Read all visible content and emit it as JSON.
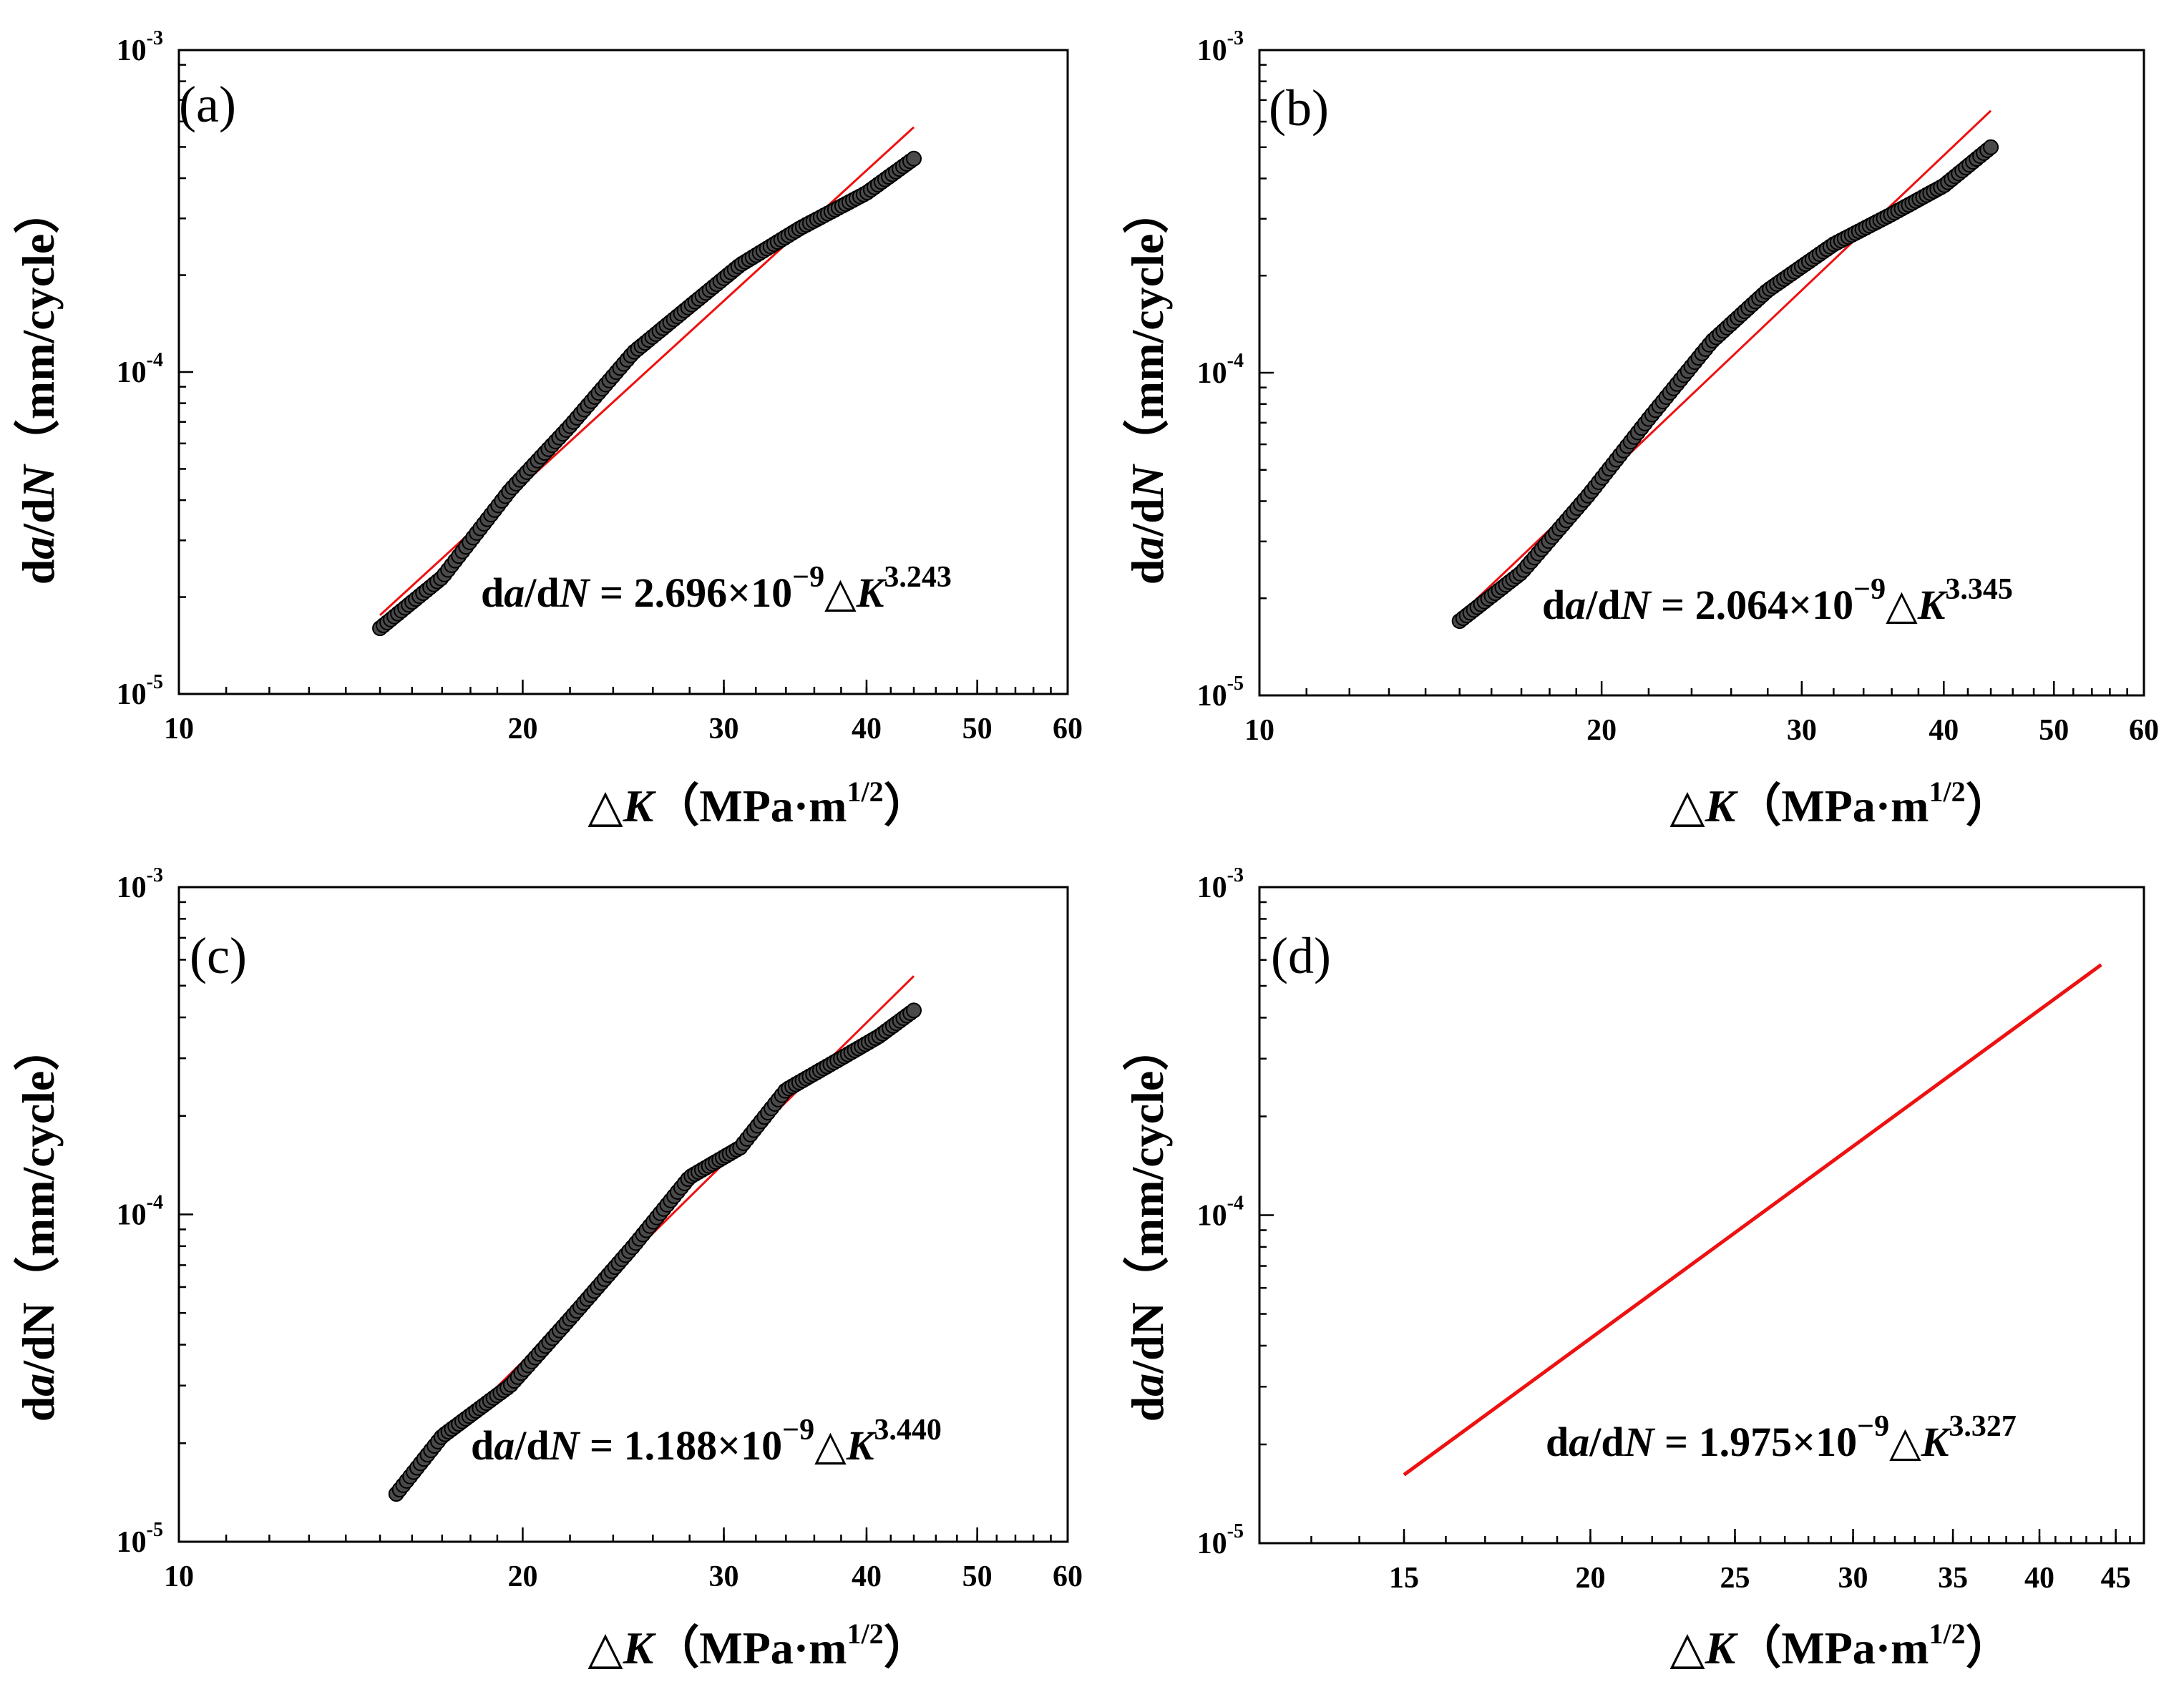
{
  "colors": {
    "fit_line": "#ee1111",
    "points": "#4a4a4a",
    "axis": "#000000"
  },
  "chart_data": [
    {
      "type": "scatter",
      "panel": "(a)",
      "xscale": "log",
      "yscale": "log",
      "xlim": [
        10,
        60
      ],
      "ylim": [
        1e-05,
        0.001
      ],
      "xticks": [
        "10",
        "20",
        "30",
        "40",
        "50",
        "60"
      ],
      "yticks": [
        {
          "base": "10",
          "exp": "-5"
        },
        {
          "base": "10",
          "exp": "-4"
        },
        {
          "base": "10",
          "exp": "-3"
        }
      ],
      "xlabel": {
        "symbol": "△",
        "var": "K",
        "unit": "（MPa·m",
        "sup": "1/2",
        "close": "）"
      },
      "ylabel": {
        "p1": "d",
        "p2": "a",
        "p3": "/d",
        "p4": "N",
        "p5": "（mm/cycle）"
      },
      "equation": {
        "p1": "d",
        "p2": "a",
        "p3": "/d",
        "p4": "N",
        "p5": " = 2.696×10",
        "exp1": "−9",
        "p6": "△",
        "p7": "K",
        "exp2": "3.243"
      },
      "fit": {
        "C": 2.696e-09,
        "m": 3.243,
        "x_range": [
          15,
          44
        ]
      },
      "series": [
        {
          "name": "data",
          "x_range": [
            15,
            44
          ],
          "n": 150,
          "anchors": [
            [
              15,
              1.6e-05
            ],
            [
              17,
              2.3e-05
            ],
            [
              19.5,
              4.3e-05
            ],
            [
              22,
              6.8e-05
            ],
            [
              25,
              0.000115
            ],
            [
              28,
              0.00016
            ],
            [
              31,
              0.000215
            ],
            [
              35,
              0.00028
            ],
            [
              40,
              0.00036
            ],
            [
              44,
              0.00046
            ]
          ]
        }
      ]
    },
    {
      "type": "scatter",
      "panel": "(b)",
      "xscale": "log",
      "yscale": "log",
      "xlim": [
        10,
        60
      ],
      "ylim": [
        1e-05,
        0.001
      ],
      "xticks": [
        "10",
        "20",
        "30",
        "40",
        "50",
        "60"
      ],
      "yticks": [
        {
          "base": "10",
          "exp": "-5"
        },
        {
          "base": "10",
          "exp": "-4"
        },
        {
          "base": "10",
          "exp": "-3"
        }
      ],
      "xlabel": {
        "symbol": "△",
        "var": "K",
        "unit": "（MPa·m",
        "sup": "1/2",
        "close": "）"
      },
      "ylabel": {
        "p1": "d",
        "p2": "a",
        "p3": "/d",
        "p4": "N",
        "p5": "（mm/cycle）"
      },
      "equation": {
        "p1": "d",
        "p2": "a",
        "p3": "/d",
        "p4": "N",
        "p5": " = 2.064×10",
        "exp1": "−9",
        "p6": "△",
        "p7": "K",
        "exp2": "3.345"
      },
      "fit": {
        "C": 2.064e-09,
        "m": 3.345,
        "x_range": [
          15,
          44
        ]
      },
      "series": [
        {
          "name": "data",
          "x_range": [
            15,
            44
          ],
          "n": 150,
          "anchors": [
            [
              15,
              1.7e-05
            ],
            [
              17,
              2.4e-05
            ],
            [
              19.5,
              4.2e-05
            ],
            [
              22,
              7.2e-05
            ],
            [
              25,
              0.000125
            ],
            [
              28,
              0.00018
            ],
            [
              32,
              0.00025
            ],
            [
              36,
              0.00031
            ],
            [
              40,
              0.00038
            ],
            [
              44,
              0.0005
            ]
          ]
        }
      ]
    },
    {
      "type": "scatter",
      "panel": "(c)",
      "xscale": "log",
      "yscale": "log",
      "xlim": [
        10,
        60
      ],
      "ylim": [
        1e-05,
        0.001
      ],
      "xticks": [
        "10",
        "20",
        "30",
        "40",
        "50",
        "60"
      ],
      "yticks": [
        {
          "base": "10",
          "exp": "-5"
        },
        {
          "base": "10",
          "exp": "-4"
        },
        {
          "base": "10",
          "exp": "-3"
        }
      ],
      "xlabel": {
        "symbol": "△",
        "var": "K",
        "unit": "（MPa·m",
        "sup": "1/2",
        "close": "）"
      },
      "ylabel": {
        "p1": "d",
        "p2": "a",
        "p3": "/d",
        "p4": "N",
        "p5": "（mm/cycle）"
      },
      "equation": {
        "p1": "d",
        "p2": "a",
        "p3": "/d",
        "p4": "N",
        "p5": " = 1.188×10",
        "exp1": "−9",
        "p6": "△",
        "p7": "K",
        "exp2": "3.440"
      },
      "fit": {
        "C": 1.188e-09,
        "m": 3.44,
        "x_range": [
          15.5,
          44
        ]
      },
      "series": [
        {
          "name": "data",
          "x_range": [
            15.5,
            44
          ],
          "n": 150,
          "anchors": [
            [
              15.5,
              1.4e-05
            ],
            [
              17,
              2.1e-05
            ],
            [
              19.5,
              3e-05
            ],
            [
              22,
              4.8e-05
            ],
            [
              25,
              8e-05
            ],
            [
              28,
              0.00013
            ],
            [
              31,
              0.00016
            ],
            [
              34,
              0.00024
            ],
            [
              38,
              0.0003
            ],
            [
              41,
              0.00035
            ],
            [
              44,
              0.00042
            ]
          ]
        }
      ]
    },
    {
      "type": "line",
      "panel": "(d)",
      "xscale": "log",
      "yscale": "log",
      "xlim": [
        12,
        47
      ],
      "ylim": [
        1e-05,
        0.001
      ],
      "xticks": [
        "15",
        "20",
        "25",
        "30",
        "35",
        "40",
        "45"
      ],
      "yticks": [
        {
          "base": "10",
          "exp": "-5"
        },
        {
          "base": "10",
          "exp": "-4"
        },
        {
          "base": "10",
          "exp": "-3"
        }
      ],
      "xlabel": {
        "symbol": "△",
        "var": "K",
        "unit": "（MPa·m",
        "sup": "1/2",
        "close": "）"
      },
      "ylabel": {
        "p1": "d",
        "p2": "a",
        "p3": "/d",
        "p4": "N",
        "p5": "（mm/cycle）"
      },
      "equation": {
        "p1": "d",
        "p2": "a",
        "p3": "/d",
        "p4": "N",
        "p5": " = 1.975×10",
        "exp1": "−9",
        "p6": "△",
        "p7": "K",
        "exp2": "3.327"
      },
      "fit": {
        "C": 1.975e-09,
        "m": 3.327,
        "x_range": [
          15,
          44
        ]
      },
      "series": []
    }
  ]
}
